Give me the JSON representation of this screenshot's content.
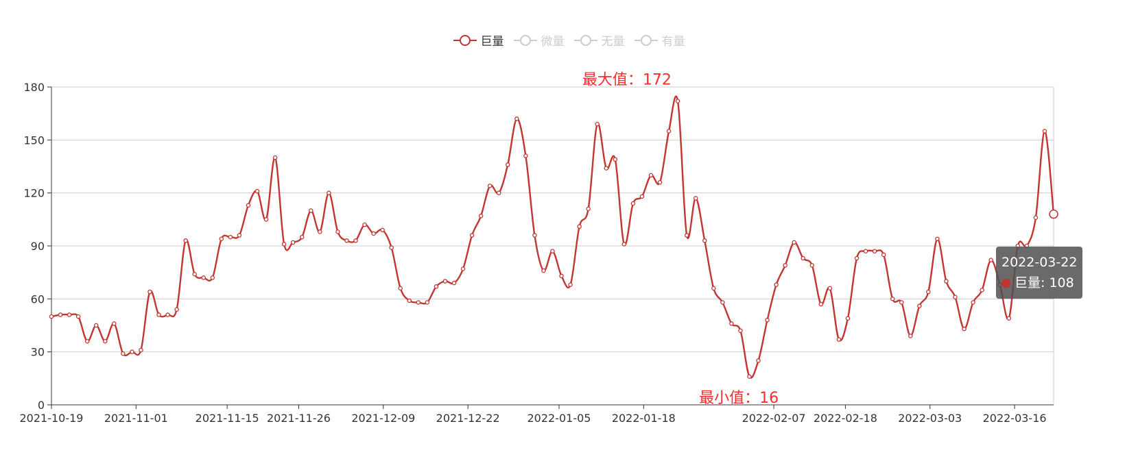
{
  "legend": [
    {
      "label": "巨量",
      "active": true
    },
    {
      "label": "微量",
      "active": false
    },
    {
      "label": "无量",
      "active": false
    },
    {
      "label": "有量",
      "active": false
    }
  ],
  "tooltip": {
    "date": "2022-03-22",
    "series": "巨量",
    "value": 108
  },
  "colors": {
    "series": "#c23531",
    "markLabel": "#ff2a2a",
    "inactive": "#cccccc",
    "grid": "#cccccc",
    "axis": "#333333"
  },
  "chart_data": {
    "type": "line",
    "smooth": true,
    "x_tick_labels": [
      "2021-10-19",
      "2021-11-01",
      "2021-11-15",
      "2021-11-26",
      "2021-12-09",
      "2021-12-22",
      "2022-01-05",
      "2022-01-18",
      "2022-02-07",
      "2022-02-18",
      "2022-03-03",
      "2022-03-16"
    ],
    "x_range": [
      "2021-10-19",
      "2022-03-22"
    ],
    "y_ticks": [
      0,
      30,
      60,
      90,
      120,
      150,
      180
    ],
    "ylim": [
      0,
      180
    ],
    "grid": true,
    "legend_position": "top-center",
    "series": [
      {
        "name": "巨量",
        "values": [
          50,
          51,
          51,
          50,
          36,
          45,
          36,
          46,
          29,
          30,
          31,
          64,
          51,
          51,
          54,
          93,
          74,
          72,
          72,
          94,
          95,
          96,
          113,
          121,
          105,
          140,
          91,
          92,
          95,
          110,
          98,
          120,
          98,
          93,
          93,
          102,
          97,
          99,
          89,
          66,
          59,
          58,
          58,
          67,
          70,
          69,
          77,
          96,
          107,
          124,
          120,
          136,
          162,
          141,
          96,
          76,
          87,
          73,
          68,
          101,
          111,
          159,
          134,
          139,
          91,
          114,
          118,
          130,
          126,
          155,
          172,
          96,
          117,
          93,
          66,
          58,
          46,
          42,
          16,
          25,
          48,
          68,
          79,
          92,
          83,
          79,
          57,
          66,
          37,
          49,
          83,
          87,
          87,
          85,
          60,
          58,
          39,
          56,
          64,
          94,
          70,
          61,
          43,
          58,
          65,
          82,
          68,
          49,
          90,
          90,
          106,
          155,
          108
        ]
      }
    ],
    "mark_points": [
      {
        "label": "最大值：172",
        "value": 172,
        "date": "2022-01-15"
      },
      {
        "label": "最小值：16",
        "value": 16,
        "date": "2022-02-01"
      }
    ]
  }
}
